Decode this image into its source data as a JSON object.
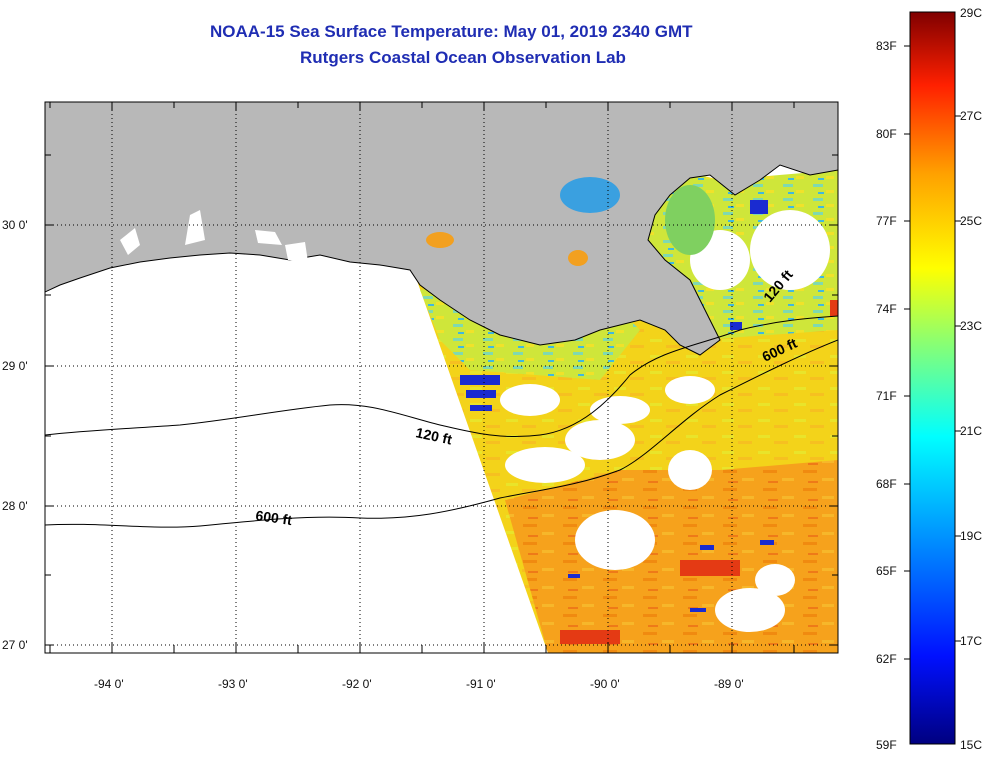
{
  "title": "NOAA-15 Sea Surface Temperature:  May 01, 2019 2340 GMT",
  "subtitle": "Rutgers Coastal Ocean Observation Lab",
  "map": {
    "lon_labels": [
      "-94 0'",
      "-93 0'",
      "-92 0'",
      "-91 0'",
      "-90 0'",
      "-89 0'"
    ],
    "lat_labels": [
      "30 0'",
      "29 0'",
      "28 0'",
      "27 0'"
    ],
    "contour_labels": [
      "120 ft",
      "600 ft",
      "120 ft",
      "600 ft"
    ],
    "colors": {
      "land": "#b8b8b8",
      "cloud": "#ffffff",
      "frame": "#000000"
    }
  },
  "colorbar": {
    "fahrenheit_labels": [
      "83F",
      "80F",
      "77F",
      "74F",
      "71F",
      "68F",
      "65F",
      "62F",
      "59F"
    ],
    "celsius_labels": [
      "29C",
      "27C",
      "25C",
      "23C",
      "21C",
      "19C",
      "17C",
      "15C"
    ],
    "colors": [
      "#000080",
      "#0000ff",
      "#00a0ff",
      "#00ffff",
      "#7fff7f",
      "#ffff00",
      "#ffa000",
      "#ff2000",
      "#800000"
    ]
  }
}
